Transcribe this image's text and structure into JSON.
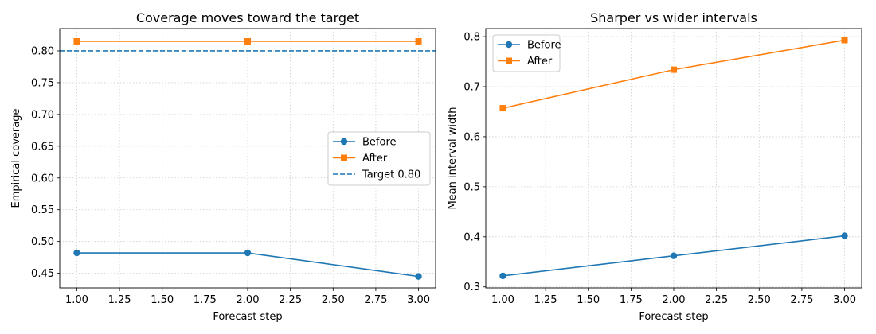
{
  "chart_data": [
    {
      "type": "line",
      "title": "Coverage moves toward the target",
      "xlabel": "Forecast step",
      "ylabel": "Empirical coverage",
      "x": [
        1.0,
        2.0,
        3.0
      ],
      "xlim": [
        0.9,
        3.1
      ],
      "ylim": [
        0.427,
        0.835
      ],
      "xticks": [
        "1.00",
        "1.25",
        "1.50",
        "1.75",
        "2.00",
        "2.25",
        "2.50",
        "2.75",
        "3.00"
      ],
      "yticks": [
        "0.45",
        "0.50",
        "0.55",
        "0.60",
        "0.65",
        "0.70",
        "0.75",
        "0.80"
      ],
      "grid": true,
      "legend_position": "center-right",
      "series": [
        {
          "name": "Before",
          "values": [
            0.482,
            0.482,
            0.445
          ],
          "color": "#1f77b4",
          "marker": "circle"
        },
        {
          "name": "After",
          "values": [
            0.815,
            0.815,
            0.815
          ],
          "color": "#ff7f0e",
          "marker": "square"
        }
      ],
      "reference_lines": [
        {
          "name": "Target 0.80",
          "y": 0.8,
          "color": "#1f77b4",
          "style": "dashed"
        }
      ]
    },
    {
      "type": "line",
      "title": "Sharper vs wider intervals",
      "xlabel": "Forecast step",
      "ylabel": "Mean interval width",
      "x": [
        1.0,
        2.0,
        3.0
      ],
      "xlim": [
        0.9,
        3.1
      ],
      "ylim": [
        0.298,
        0.816
      ],
      "xticks": [
        "1.00",
        "1.25",
        "1.50",
        "1.75",
        "2.00",
        "2.25",
        "2.50",
        "2.75",
        "3.00"
      ],
      "yticks": [
        "0.3",
        "0.4",
        "0.5",
        "0.6",
        "0.7",
        "0.8"
      ],
      "grid": true,
      "legend_position": "top-left",
      "series": [
        {
          "name": "Before",
          "values": [
            0.322,
            0.362,
            0.402
          ],
          "color": "#1f77b4",
          "marker": "circle"
        },
        {
          "name": "After",
          "values": [
            0.657,
            0.734,
            0.793
          ],
          "color": "#ff7f0e",
          "marker": "square"
        }
      ],
      "reference_lines": []
    }
  ]
}
